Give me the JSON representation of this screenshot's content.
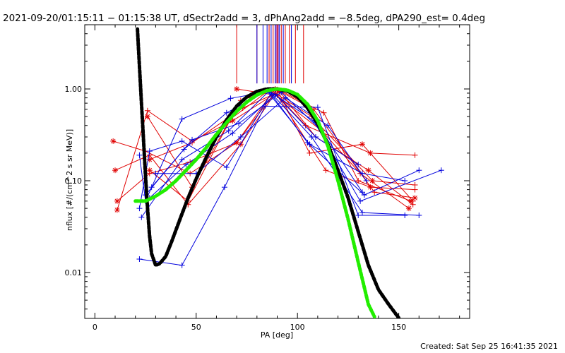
{
  "chart_data": {
    "type": "line",
    "title": "2021-09-20/01:15:11 − 01:15:38 UT, dSectr2add = 3, dPhAng2add = −8.5deg, dPA290_est=  0.4deg",
    "xlabel": "PA [deg]",
    "ylabel": "nflux [#/(cm^2 s sr MeV)]",
    "footer": "Created: Sat Sep 25 16:41:35 2021",
    "xlim": [
      -5,
      185
    ],
    "ylim_log10": [
      -2.5,
      0.7
    ],
    "yscale": "log",
    "x_ticks": [
      0,
      50,
      100,
      150
    ],
    "x_tick_labels": [
      "0",
      "50",
      "100",
      "150"
    ],
    "y_ticks": [
      0.01,
      0.1,
      1.0
    ],
    "y_tick_labels": [
      "0.01",
      "0.10",
      "1.00"
    ],
    "colors": {
      "red": "#e00000",
      "blue": "#0000dd",
      "black": "#000000",
      "green": "#22ee00",
      "purple": "#880088"
    },
    "vertical_marks": {
      "y_from": 1.15,
      "red": [
        70,
        80,
        86,
        88,
        90,
        92,
        94,
        96,
        99,
        103
      ],
      "blue": [
        80,
        83,
        85,
        87,
        89,
        91,
        93,
        97
      ],
      "purple": [
        89.5,
        90.5
      ]
    },
    "red_series": [
      {
        "x": [
          9,
          25,
          47,
          70,
          88,
          104,
          136,
          158
        ],
        "y": [
          0.27,
          0.21,
          0.12,
          0.26,
          0.95,
          0.4,
          0.2,
          0.19
        ]
      },
      {
        "x": [
          10,
          27,
          46,
          72,
          89,
          107,
          137,
          158
        ],
        "y": [
          0.13,
          0.19,
          0.055,
          0.25,
          0.9,
          0.5,
          0.1,
          0.09
        ]
      },
      {
        "x": [
          11,
          27,
          47,
          70,
          90,
          106,
          132,
          157
        ],
        "y": [
          0.06,
          0.12,
          0.16,
          0.26,
          0.98,
          0.2,
          0.25,
          0.06
        ]
      },
      {
        "x": [
          11,
          26,
          48,
          68,
          91,
          109,
          135,
          157
        ],
        "y": [
          0.048,
          0.58,
          0.27,
          0.45,
          0.95,
          0.3,
          0.13,
          0.055
        ]
      },
      {
        "x": [
          26,
          48,
          72,
          89,
          108,
          138,
          158
        ],
        "y": [
          0.5,
          0.085,
          0.75,
          1.0,
          0.6,
          0.075,
          0.065
        ]
      },
      {
        "x": [
          27,
          46,
          67,
          86,
          112,
          131,
          155
        ],
        "y": [
          0.13,
          0.06,
          0.47,
          0.97,
          0.35,
          0.12,
          0.05
        ]
      },
      {
        "x": [
          70,
          90,
          114,
          136,
          158
        ],
        "y": [
          1.0,
          0.85,
          0.13,
          0.085,
          0.08
        ]
      },
      {
        "x": [
          27,
          48,
          73,
          92,
          113,
          130,
          156
        ],
        "y": [
          0.17,
          0.26,
          0.62,
          0.95,
          0.55,
          0.1,
          0.06
        ]
      }
    ],
    "blue_series": [
      {
        "x": [
          22,
          25,
          43,
          67,
          86,
          105,
          133,
          160
        ],
        "y": [
          0.19,
          0.06,
          0.47,
          0.79,
          0.94,
          0.26,
          0.07,
          0.13
        ]
      },
      {
        "x": [
          22,
          43,
          64,
          84,
          110,
          130,
          153
        ],
        "y": [
          0.014,
          0.012,
          0.085,
          0.65,
          0.63,
          0.042,
          0.042
        ]
      },
      {
        "x": [
          22,
          27,
          43,
          65,
          87,
          107,
          132,
          160
        ],
        "y": [
          0.05,
          0.21,
          0.27,
          0.14,
          0.9,
          0.3,
          0.045,
          0.042
        ]
      },
      {
        "x": [
          23,
          43,
          66,
          86,
          108,
          131,
          171
        ],
        "y": [
          0.04,
          0.17,
          0.35,
          0.95,
          0.45,
          0.06,
          0.13
        ]
      },
      {
        "x": [
          25,
          44,
          65,
          85,
          106,
          132,
          153
        ],
        "y": [
          0.07,
          0.22,
          0.55,
          0.95,
          0.25,
          0.12,
          0.1
        ]
      },
      {
        "x": [
          27,
          45,
          68,
          89,
          109,
          130
        ],
        "y": [
          0.065,
          0.15,
          0.33,
          0.88,
          0.3,
          0.15
        ]
      },
      {
        "x": [
          28,
          48,
          71,
          92,
          112,
          132
        ],
        "y": [
          0.085,
          0.28,
          0.42,
          0.92,
          0.35,
          0.075
        ]
      },
      {
        "x": [
          30,
          50,
          72,
          94,
          115,
          134
        ],
        "y": [
          0.12,
          0.12,
          0.3,
          0.8,
          0.4,
          0.1
        ]
      }
    ],
    "black_fit": {
      "x": [
        21,
        22,
        23,
        24,
        25,
        26,
        27,
        28,
        30,
        32,
        35,
        38,
        42,
        46,
        50,
        55,
        60,
        65,
        70,
        75,
        80,
        85,
        90,
        95,
        100,
        105,
        110,
        115,
        120,
        125,
        130,
        135,
        140,
        145,
        150
      ],
      "y": [
        4.5,
        1.8,
        0.7,
        0.28,
        0.11,
        0.05,
        0.025,
        0.016,
        0.012,
        0.0125,
        0.015,
        0.022,
        0.038,
        0.065,
        0.105,
        0.18,
        0.3,
        0.46,
        0.65,
        0.82,
        0.94,
        1.0,
        1.0,
        0.95,
        0.82,
        0.62,
        0.42,
        0.25,
        0.13,
        0.065,
        0.028,
        0.012,
        0.0065,
        0.0045,
        0.0032
      ]
    },
    "green_fit": {
      "x": [
        20,
        25,
        30,
        35,
        40,
        45,
        50,
        55,
        60,
        65,
        70,
        75,
        80,
        85,
        90,
        95,
        100,
        105,
        110,
        115,
        120,
        125,
        130,
        135,
        138
      ],
      "y": [
        0.06,
        0.06,
        0.068,
        0.08,
        0.1,
        0.13,
        0.17,
        0.23,
        0.32,
        0.43,
        0.57,
        0.72,
        0.86,
        0.96,
        1.0,
        0.97,
        0.87,
        0.68,
        0.45,
        0.24,
        0.1,
        0.038,
        0.013,
        0.0045,
        0.0033
      ]
    }
  }
}
